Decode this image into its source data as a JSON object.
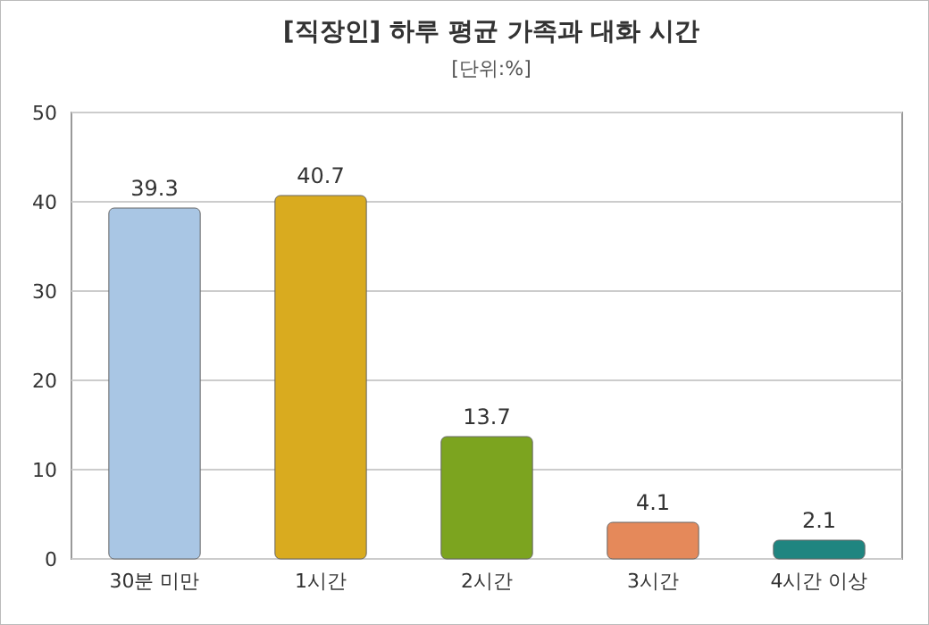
{
  "chart_data": {
    "type": "bar",
    "title": "[직장인] 하루 평균 가족과 대화 시간",
    "subtitle": "[단위:%]",
    "categories": [
      "30분 미만",
      "1시간",
      "2시간",
      "3시간",
      "4시간 이상"
    ],
    "values": [
      39.3,
      40.7,
      13.7,
      4.1,
      2.1
    ],
    "colors": [
      "#a9c6e4",
      "#d9ab1f",
      "#7ca41f",
      "#e5895a",
      "#1f8580"
    ],
    "ylim": [
      0,
      50
    ],
    "yticks": [
      0,
      10,
      20,
      30,
      40,
      50
    ],
    "grid": "y",
    "data_labels": true
  }
}
